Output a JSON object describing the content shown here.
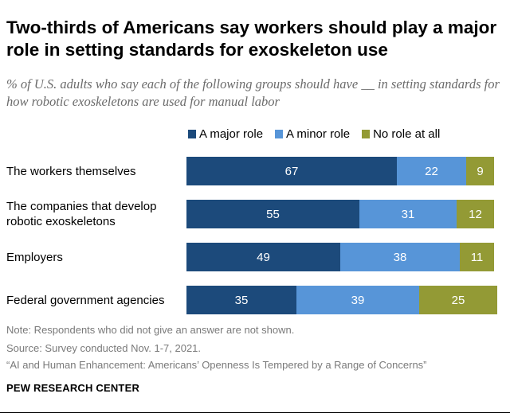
{
  "header": {
    "title": "Two-thirds of Americans say workers should play a major role in setting standards for exoskeleton use",
    "subtitle": "% of U.S. adults who say each of the following groups should have __ in setting standards for how robotic exoskeletons are used for manual labor"
  },
  "chart_data": {
    "type": "bar",
    "orientation": "horizontal",
    "stacked": true,
    "categories": [
      "The workers themselves",
      "The companies that develop robotic exoskeletons",
      "Employers",
      "Federal government agencies"
    ],
    "series": [
      {
        "name": "A major role",
        "color": "#1c4a7b",
        "values": [
          67,
          55,
          49,
          35
        ]
      },
      {
        "name": "A minor role",
        "color": "#5795d8",
        "values": [
          22,
          31,
          38,
          39
        ]
      },
      {
        "name": "No role at all",
        "color": "#939a35",
        "values": [
          9,
          12,
          11,
          25
        ]
      }
    ],
    "xlim": [
      0,
      100
    ],
    "legend_position": "top-right"
  },
  "footer": {
    "note": "Note: Respondents who did not give an answer are not shown.",
    "source": "Source: Survey conducted Nov. 1-7, 2021.",
    "report": "“AI and Human Enhancement: Americans’ Openness Is Tempered by a Range of Concerns”",
    "brand": "PEW RESEARCH CENTER"
  }
}
